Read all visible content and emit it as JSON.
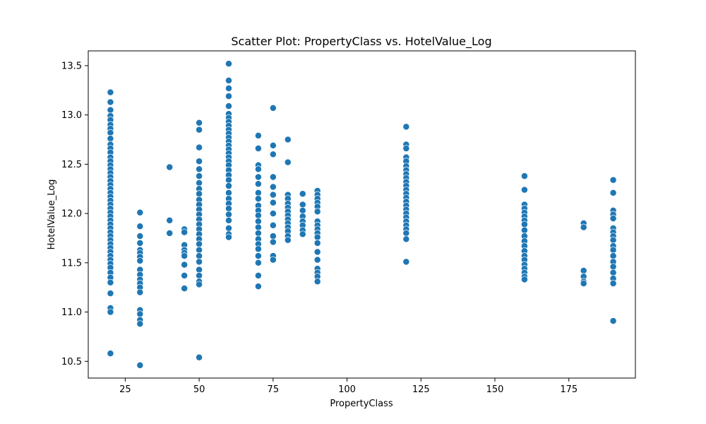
{
  "chart_data": {
    "type": "scatter",
    "title": "Scatter Plot: PropertyClass vs. HotelValue_Log",
    "xlabel": "PropertyClass",
    "ylabel": "HotelValue_Log",
    "xlim": [
      12.5,
      197.5
    ],
    "ylim": [
      10.33,
      13.65
    ],
    "xticks": [
      25,
      50,
      75,
      100,
      125,
      150,
      175
    ],
    "yticks": [
      10.5,
      11.0,
      11.5,
      12.0,
      12.5,
      13.0,
      13.5
    ],
    "xtick_labels": [
      "25",
      "50",
      "75",
      "100",
      "125",
      "150",
      "175"
    ],
    "ytick_labels": [
      "10.5",
      "11.0",
      "11.5",
      "12.0",
      "12.5",
      "13.0",
      "13.5"
    ],
    "grid": false,
    "marker_color": "#1f77b4",
    "marker_edge": "#ffffff",
    "points": [
      [
        20,
        13.23
      ],
      [
        20,
        13.13
      ],
      [
        20,
        13.05
      ],
      [
        20,
        12.99
      ],
      [
        20,
        12.95
      ],
      [
        20,
        12.9
      ],
      [
        20,
        12.86
      ],
      [
        20,
        12.82
      ],
      [
        20,
        12.76
      ],
      [
        20,
        12.7
      ],
      [
        20,
        12.66
      ],
      [
        20,
        12.62
      ],
      [
        20,
        12.57
      ],
      [
        20,
        12.53
      ],
      [
        20,
        12.49
      ],
      [
        20,
        12.45
      ],
      [
        20,
        12.41
      ],
      [
        20,
        12.37
      ],
      [
        20,
        12.33
      ],
      [
        20,
        12.29
      ],
      [
        20,
        12.25
      ],
      [
        20,
        12.21
      ],
      [
        20,
        12.17
      ],
      [
        20,
        12.13
      ],
      [
        20,
        12.09
      ],
      [
        20,
        12.05
      ],
      [
        20,
        12.01
      ],
      [
        20,
        11.97
      ],
      [
        20,
        11.93
      ],
      [
        20,
        11.89
      ],
      [
        20,
        11.85
      ],
      [
        20,
        11.81
      ],
      [
        20,
        11.77
      ],
      [
        20,
        11.73
      ],
      [
        20,
        11.69
      ],
      [
        20,
        11.65
      ],
      [
        20,
        11.61
      ],
      [
        20,
        11.57
      ],
      [
        20,
        11.53
      ],
      [
        20,
        11.49
      ],
      [
        20,
        11.45
      ],
      [
        20,
        11.4
      ],
      [
        20,
        11.35
      ],
      [
        20,
        11.3
      ],
      [
        20,
        11.19
      ],
      [
        20,
        11.04
      ],
      [
        20,
        11.0
      ],
      [
        20,
        10.58
      ],
      [
        30,
        12.01
      ],
      [
        30,
        11.87
      ],
      [
        30,
        11.77
      ],
      [
        30,
        11.7
      ],
      [
        30,
        11.63
      ],
      [
        30,
        11.6
      ],
      [
        30,
        11.56
      ],
      [
        30,
        11.52
      ],
      [
        30,
        11.43
      ],
      [
        30,
        11.38
      ],
      [
        30,
        11.33
      ],
      [
        30,
        11.29
      ],
      [
        30,
        11.25
      ],
      [
        30,
        11.2
      ],
      [
        30,
        11.02
      ],
      [
        30,
        10.98
      ],
      [
        30,
        10.92
      ],
      [
        30,
        10.88
      ],
      [
        30,
        10.46
      ],
      [
        40,
        12.47
      ],
      [
        40,
        11.93
      ],
      [
        40,
        11.8
      ],
      [
        45,
        11.84
      ],
      [
        45,
        11.81
      ],
      [
        45,
        11.68
      ],
      [
        45,
        11.63
      ],
      [
        45,
        11.6
      ],
      [
        45,
        11.57
      ],
      [
        45,
        11.48
      ],
      [
        45,
        11.37
      ],
      [
        45,
        11.24
      ],
      [
        50,
        12.92
      ],
      [
        50,
        12.85
      ],
      [
        50,
        12.67
      ],
      [
        50,
        12.53
      ],
      [
        50,
        12.45
      ],
      [
        50,
        12.38
      ],
      [
        50,
        12.31
      ],
      [
        50,
        12.25
      ],
      [
        50,
        12.2
      ],
      [
        50,
        12.14
      ],
      [
        50,
        12.09
      ],
      [
        50,
        12.04
      ],
      [
        50,
        11.99
      ],
      [
        50,
        11.94
      ],
      [
        50,
        11.89
      ],
      [
        50,
        11.84
      ],
      [
        50,
        11.79
      ],
      [
        50,
        11.74
      ],
      [
        50,
        11.69
      ],
      [
        50,
        11.63
      ],
      [
        50,
        11.57
      ],
      [
        50,
        11.51
      ],
      [
        50,
        11.43
      ],
      [
        50,
        11.37
      ],
      [
        50,
        11.31
      ],
      [
        50,
        11.28
      ],
      [
        50,
        10.54
      ],
      [
        60,
        13.52
      ],
      [
        60,
        13.35
      ],
      [
        60,
        13.27
      ],
      [
        60,
        13.19
      ],
      [
        60,
        13.09
      ],
      [
        60,
        13.01
      ],
      [
        60,
        12.97
      ],
      [
        60,
        12.93
      ],
      [
        60,
        12.89
      ],
      [
        60,
        12.85
      ],
      [
        60,
        12.81
      ],
      [
        60,
        12.77
      ],
      [
        60,
        12.73
      ],
      [
        60,
        12.69
      ],
      [
        60,
        12.65
      ],
      [
        60,
        12.61
      ],
      [
        60,
        12.57
      ],
      [
        60,
        12.53
      ],
      [
        60,
        12.49
      ],
      [
        60,
        12.44
      ],
      [
        60,
        12.39
      ],
      [
        60,
        12.34
      ],
      [
        60,
        12.28
      ],
      [
        60,
        12.21
      ],
      [
        60,
        12.15
      ],
      [
        60,
        12.1
      ],
      [
        60,
        12.05
      ],
      [
        60,
        11.99
      ],
      [
        60,
        11.93
      ],
      [
        60,
        11.85
      ],
      [
        60,
        11.79
      ],
      [
        60,
        11.76
      ],
      [
        70,
        12.79
      ],
      [
        70,
        12.66
      ],
      [
        70,
        12.49
      ],
      [
        70,
        12.45
      ],
      [
        70,
        12.37
      ],
      [
        70,
        12.3
      ],
      [
        70,
        12.21
      ],
      [
        70,
        12.15
      ],
      [
        70,
        12.08
      ],
      [
        70,
        12.03
      ],
      [
        70,
        11.98
      ],
      [
        70,
        11.92
      ],
      [
        70,
        11.86
      ],
      [
        70,
        11.8
      ],
      [
        70,
        11.74
      ],
      [
        70,
        11.69
      ],
      [
        70,
        11.64
      ],
      [
        70,
        11.57
      ],
      [
        70,
        11.5
      ],
      [
        70,
        11.37
      ],
      [
        70,
        11.26
      ],
      [
        75,
        13.07
      ],
      [
        75,
        12.69
      ],
      [
        75,
        12.6
      ],
      [
        75,
        12.37
      ],
      [
        75,
        12.27
      ],
      [
        75,
        12.19
      ],
      [
        75,
        12.11
      ],
      [
        75,
        12.0
      ],
      [
        75,
        11.88
      ],
      [
        75,
        11.77
      ],
      [
        75,
        11.71
      ],
      [
        75,
        11.57
      ],
      [
        75,
        11.53
      ],
      [
        80,
        12.75
      ],
      [
        80,
        12.52
      ],
      [
        80,
        12.19
      ],
      [
        80,
        12.15
      ],
      [
        80,
        12.1
      ],
      [
        80,
        12.06
      ],
      [
        80,
        12.02
      ],
      [
        80,
        11.98
      ],
      [
        80,
        11.94
      ],
      [
        80,
        11.9
      ],
      [
        80,
        11.86
      ],
      [
        80,
        11.82
      ],
      [
        80,
        11.77
      ],
      [
        80,
        11.73
      ],
      [
        85,
        12.2
      ],
      [
        85,
        12.09
      ],
      [
        85,
        12.03
      ],
      [
        85,
        11.97
      ],
      [
        85,
        11.92
      ],
      [
        85,
        11.88
      ],
      [
        85,
        11.83
      ],
      [
        85,
        11.79
      ],
      [
        90,
        12.23
      ],
      [
        90,
        12.19
      ],
      [
        90,
        12.15
      ],
      [
        90,
        12.11
      ],
      [
        90,
        12.07
      ],
      [
        90,
        12.02
      ],
      [
        90,
        11.92
      ],
      [
        90,
        11.88
      ],
      [
        90,
        11.84
      ],
      [
        90,
        11.8
      ],
      [
        90,
        11.76
      ],
      [
        90,
        11.7
      ],
      [
        90,
        11.61
      ],
      [
        90,
        11.53
      ],
      [
        90,
        11.44
      ],
      [
        90,
        11.4
      ],
      [
        90,
        11.36
      ],
      [
        90,
        11.31
      ],
      [
        120,
        12.88
      ],
      [
        120,
        12.7
      ],
      [
        120,
        12.66
      ],
      [
        120,
        12.57
      ],
      [
        120,
        12.53
      ],
      [
        120,
        12.48
      ],
      [
        120,
        12.44
      ],
      [
        120,
        12.4
      ],
      [
        120,
        12.36
      ],
      [
        120,
        12.32
      ],
      [
        120,
        12.28
      ],
      [
        120,
        12.24
      ],
      [
        120,
        12.2
      ],
      [
        120,
        12.16
      ],
      [
        120,
        12.12
      ],
      [
        120,
        12.08
      ],
      [
        120,
        12.04
      ],
      [
        120,
        12.0
      ],
      [
        120,
        11.96
      ],
      [
        120,
        11.92
      ],
      [
        120,
        11.88
      ],
      [
        120,
        11.84
      ],
      [
        120,
        11.8
      ],
      [
        120,
        11.74
      ],
      [
        120,
        11.51
      ],
      [
        160,
        12.38
      ],
      [
        160,
        12.24
      ],
      [
        160,
        12.09
      ],
      [
        160,
        12.05
      ],
      [
        160,
        12.01
      ],
      [
        160,
        11.97
      ],
      [
        160,
        11.93
      ],
      [
        160,
        11.89
      ],
      [
        160,
        11.83
      ],
      [
        160,
        11.77
      ],
      [
        160,
        11.72
      ],
      [
        160,
        11.67
      ],
      [
        160,
        11.62
      ],
      [
        160,
        11.57
      ],
      [
        160,
        11.53
      ],
      [
        160,
        11.48
      ],
      [
        160,
        11.44
      ],
      [
        160,
        11.4
      ],
      [
        160,
        11.36
      ],
      [
        160,
        11.33
      ],
      [
        180,
        11.9
      ],
      [
        180,
        11.86
      ],
      [
        180,
        11.42
      ],
      [
        180,
        11.36
      ],
      [
        180,
        11.31
      ],
      [
        180,
        11.29
      ],
      [
        190,
        12.34
      ],
      [
        190,
        12.21
      ],
      [
        190,
        12.03
      ],
      [
        190,
        11.99
      ],
      [
        190,
        11.95
      ],
      [
        190,
        11.85
      ],
      [
        190,
        11.81
      ],
      [
        190,
        11.77
      ],
      [
        190,
        11.73
      ],
      [
        190,
        11.67
      ],
      [
        190,
        11.63
      ],
      [
        190,
        11.57
      ],
      [
        190,
        11.51
      ],
      [
        190,
        11.46
      ],
      [
        190,
        11.4
      ],
      [
        190,
        11.34
      ],
      [
        190,
        11.29
      ],
      [
        190,
        10.91
      ]
    ]
  }
}
